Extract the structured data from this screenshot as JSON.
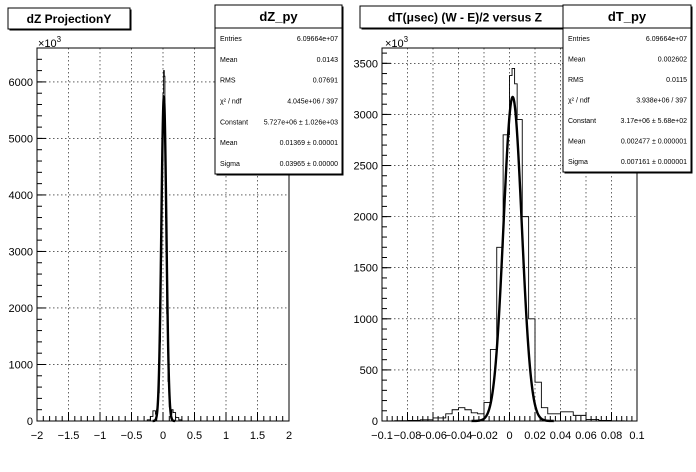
{
  "chart_data": [
    {
      "type": "line",
      "title": "dZ ProjectionY",
      "exponent_label": "×10",
      "exponent_power": "3",
      "xlim": [
        -2,
        2
      ],
      "ylim": [
        0,
        6600
      ],
      "x_ticks": [
        -2,
        -1.5,
        -1,
        -0.5,
        0,
        0.5,
        1,
        1.5,
        2
      ],
      "x_tick_labels": [
        "−2",
        "−1.5",
        "−1",
        "−0.5",
        "0",
        "0.5",
        "1",
        "1.5",
        "2"
      ],
      "y_ticks": [
        0,
        1000,
        2000,
        3000,
        4000,
        5000,
        6000
      ],
      "y_tick_labels": [
        "0",
        "1000",
        "2000",
        "3000",
        "4000",
        "5000",
        "6000"
      ],
      "grid": true,
      "series": [
        {
          "kind": "histogram",
          "x": [
            -0.3,
            -0.25,
            -0.2,
            -0.16,
            -0.12,
            -0.1,
            -0.08,
            -0.06,
            -0.04,
            -0.02,
            0,
            0.01,
            0.02,
            0.03,
            0.04,
            0.06,
            0.08,
            0.1,
            0.12,
            0.14,
            0.16,
            0.2,
            0.25,
            0.3
          ],
          "y": [
            0,
            20,
            80,
            180,
            120,
            200,
            500,
            1400,
            2900,
            4600,
            5800,
            6200,
            6100,
            5200,
            3600,
            1900,
            700,
            250,
            120,
            200,
            150,
            60,
            20,
            0
          ]
        },
        {
          "kind": "gaus",
          "constant": 5727,
          "mean": 0.01369,
          "sigma": 0.03965
        }
      ],
      "stats_box": {
        "name": "dZ_py",
        "rows": [
          {
            "label": "Entries",
            "value": "6.09664e+07"
          },
          {
            "label": "Mean",
            "value": "0.0143"
          },
          {
            "label": "RMS",
            "value": "0.07691"
          },
          {
            "label": "χ² / ndf",
            "value": "4.045e+06 / 397"
          },
          {
            "label": "Constant",
            "value": "5.727e+06 ± 1.026e+03"
          },
          {
            "label": "Mean",
            "value": "0.01369 ± 0.00001"
          },
          {
            "label": "Sigma",
            "value": "0.03965 ± 0.00000"
          }
        ]
      }
    },
    {
      "type": "line",
      "title": "dT(μsec) (W - E)/2 versus Z",
      "exponent_label": "×10",
      "exponent_power": "3",
      "xlim": [
        -0.1,
        0.1
      ],
      "ylim": [
        0,
        3650
      ],
      "x_ticks": [
        -0.1,
        -0.08,
        -0.06,
        -0.04,
        -0.02,
        0,
        0.02,
        0.04,
        0.06,
        0.08,
        0.1
      ],
      "x_tick_labels": [
        "−0.1",
        "−0.08",
        "−0.06",
        "−0.04",
        "−0.02",
        "0",
        "0.02",
        "0.04",
        "0.06",
        "0.08",
        "0.1"
      ],
      "y_ticks": [
        0,
        500,
        1000,
        1500,
        2000,
        2500,
        3000,
        3500
      ],
      "y_tick_labels": [
        "0",
        "500",
        "1000",
        "1500",
        "2000",
        "2500",
        "3000",
        "3500"
      ],
      "grid": true,
      "series": [
        {
          "kind": "histogram",
          "x": [
            -0.1,
            -0.09,
            -0.08,
            -0.07,
            -0.06,
            -0.05,
            -0.045,
            -0.04,
            -0.035,
            -0.03,
            -0.025,
            -0.02,
            -0.015,
            -0.01,
            -0.005,
            0,
            0.002,
            0.004,
            0.006,
            0.01,
            0.015,
            0.02,
            0.025,
            0.03,
            0.035,
            0.04,
            0.045,
            0.05,
            0.06,
            0.07,
            0.08,
            0.09,
            0.1
          ],
          "y": [
            0,
            3,
            6,
            12,
            30,
            70,
            110,
            130,
            110,
            80,
            70,
            180,
            700,
            1700,
            2800,
            3380,
            3450,
            3300,
            2950,
            2000,
            1000,
            380,
            130,
            70,
            70,
            90,
            90,
            55,
            15,
            5,
            2,
            0,
            0
          ]
        },
        {
          "kind": "gaus",
          "constant": 3170,
          "mean": 0.002477,
          "sigma": 0.007161
        }
      ],
      "stats_box": {
        "name": "dT_py",
        "rows": [
          {
            "label": "Entries",
            "value": "6.09664e+07"
          },
          {
            "label": "Mean",
            "value": "0.002602"
          },
          {
            "label": "RMS",
            "value": "0.0115"
          },
          {
            "label": "χ² / ndf",
            "value": "3.938e+06 / 397"
          },
          {
            "label": "Constant",
            "value": "3.17e+06 ± 5.68e+02"
          },
          {
            "label": "Mean",
            "value": "0.002477 ± 0.000001"
          },
          {
            "label": "Sigma",
            "value": "0.007161 ± 0.000001"
          }
        ]
      }
    }
  ]
}
